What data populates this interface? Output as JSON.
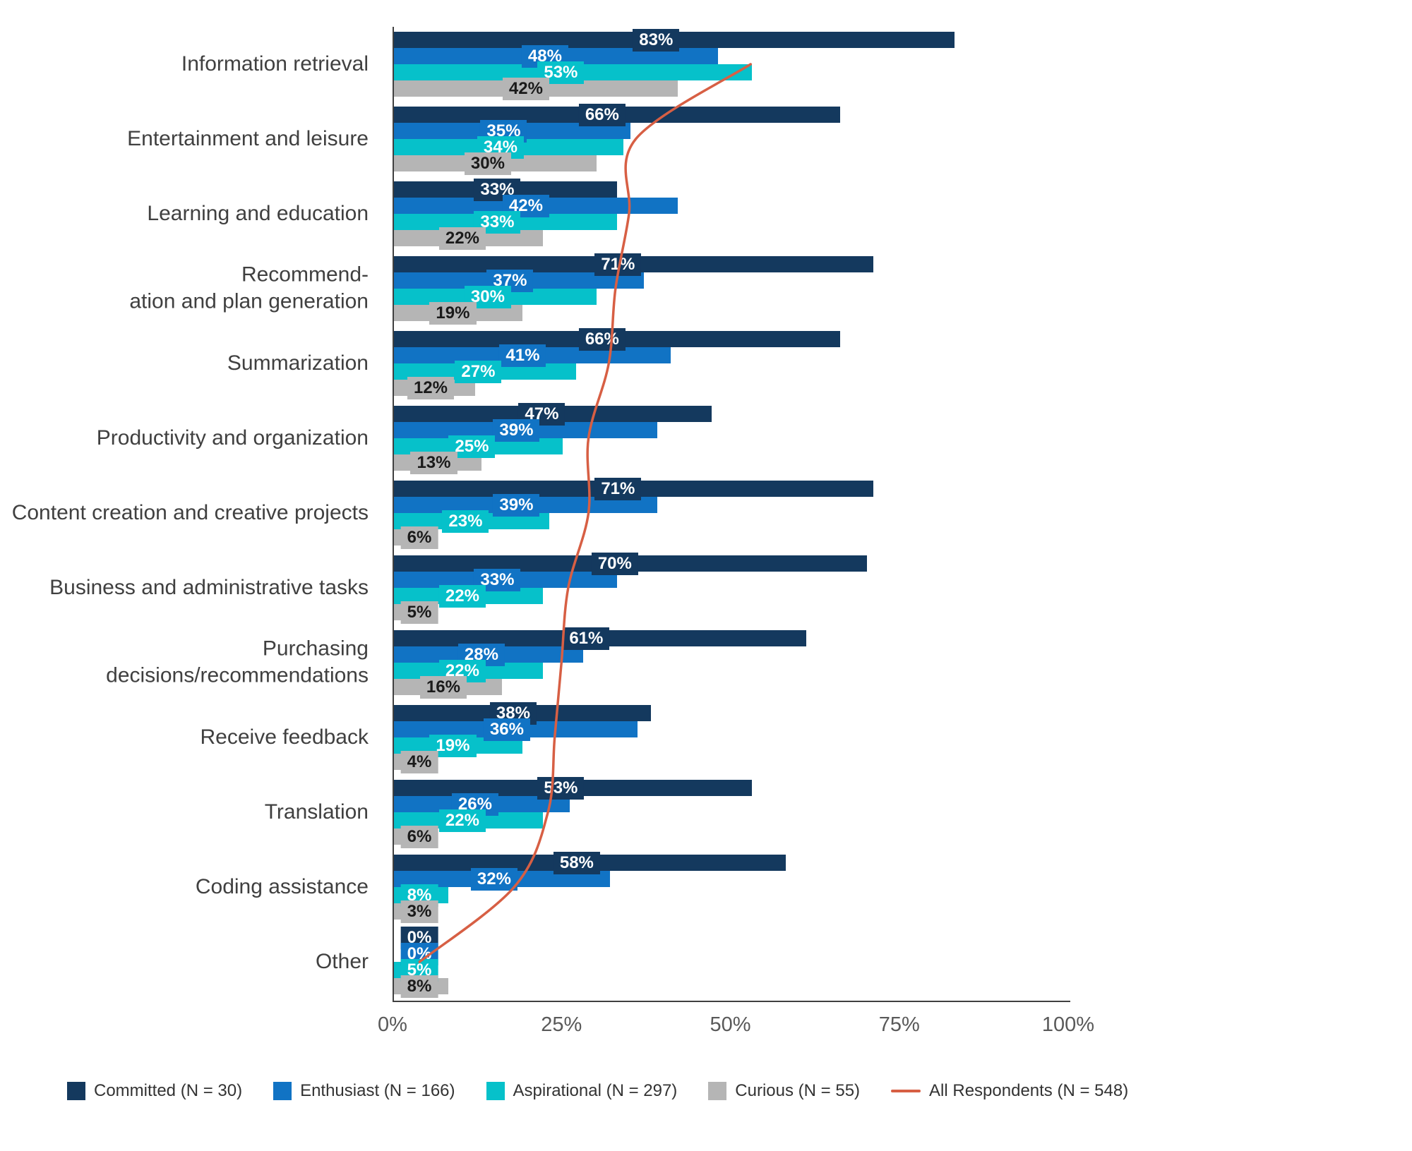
{
  "chart_data": {
    "type": "bar",
    "orientation": "horizontal",
    "title": "",
    "xlabel": "",
    "ylabel": "",
    "legend_position": "bottom",
    "grid": false,
    "value_suffix": "%",
    "x_axis": {
      "min": 0,
      "max": 100,
      "ticks": [
        "0%",
        "25%",
        "50%",
        "75%",
        "100%"
      ],
      "tick_values": [
        0,
        25,
        50,
        75,
        100
      ]
    },
    "categories": [
      "Information retrieval",
      "Entertainment and leisure",
      "Learning and education",
      "Recommend-\nation and plan generation",
      "Summarization",
      "Productivity and organization",
      "Content creation and creative projects",
      "Business and administrative tasks",
      "Purchasing decisions/recommendations",
      "Receive feedback",
      "Translation",
      "Coding assistance",
      "Other"
    ],
    "series": [
      {
        "name": "Committed (N = 30)",
        "slug": "committed",
        "color": "#14395e",
        "label_text_color": "#ffffff",
        "values": [
          83,
          66,
          33,
          71,
          66,
          47,
          71,
          70,
          61,
          38,
          53,
          58,
          0
        ]
      },
      {
        "name": "Enthusiast (N = 166)",
        "slug": "enthusiast",
        "color": "#1173c4",
        "label_text_color": "#ffffff",
        "values": [
          48,
          35,
          42,
          37,
          41,
          39,
          39,
          33,
          28,
          36,
          26,
          32,
          0
        ]
      },
      {
        "name": "Aspirational (N = 297)",
        "slug": "aspirational",
        "color": "#06c1ca",
        "label_text_color": "#ffffff",
        "values": [
          53,
          34,
          33,
          30,
          27,
          25,
          23,
          22,
          22,
          19,
          22,
          8,
          5
        ]
      },
      {
        "name": "Curious (N = 55)",
        "slug": "curious",
        "color": "#b5b5b5",
        "label_text_color": "#1a1a1a",
        "values": [
          42,
          30,
          22,
          19,
          12,
          13,
          6,
          5,
          16,
          4,
          6,
          3,
          8
        ]
      }
    ],
    "line_series": {
      "name": "All Respondents (N = 548)",
      "slug": "all-respondents",
      "color": "#d75f44",
      "estimated": true,
      "values": [
        53,
        36,
        35,
        33,
        32,
        29,
        29,
        26,
        25,
        24,
        23,
        18,
        4
      ]
    }
  }
}
